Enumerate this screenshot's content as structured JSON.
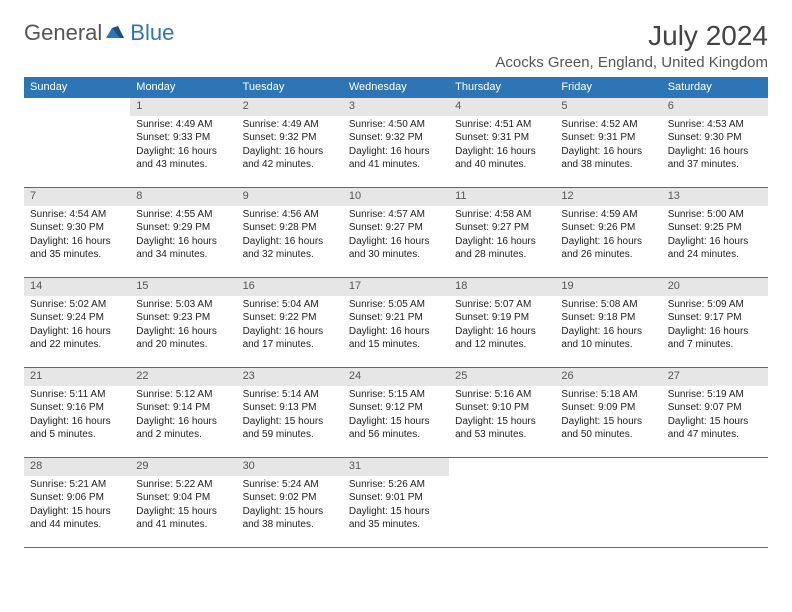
{
  "logo": {
    "general": "General",
    "blue": "Blue"
  },
  "title": "July 2024",
  "location": "Acocks Green, England, United Kingdom",
  "colors": {
    "header_bg": "#2e75b6",
    "header_text": "#ffffff",
    "daynum_bg": "#e6e6e6",
    "border": "#2e75b6",
    "background": "#ffffff",
    "text": "#222222"
  },
  "weekdays": [
    "Sunday",
    "Monday",
    "Tuesday",
    "Wednesday",
    "Thursday",
    "Friday",
    "Saturday"
  ],
  "weeks": [
    {
      "nums": [
        "",
        "1",
        "2",
        "3",
        "4",
        "5",
        "6"
      ],
      "cells": [
        {
          "sunrise": "",
          "sunset": "",
          "daylight": ""
        },
        {
          "sunrise": "Sunrise: 4:49 AM",
          "sunset": "Sunset: 9:33 PM",
          "daylight": "Daylight: 16 hours and 43 minutes."
        },
        {
          "sunrise": "Sunrise: 4:49 AM",
          "sunset": "Sunset: 9:32 PM",
          "daylight": "Daylight: 16 hours and 42 minutes."
        },
        {
          "sunrise": "Sunrise: 4:50 AM",
          "sunset": "Sunset: 9:32 PM",
          "daylight": "Daylight: 16 hours and 41 minutes."
        },
        {
          "sunrise": "Sunrise: 4:51 AM",
          "sunset": "Sunset: 9:31 PM",
          "daylight": "Daylight: 16 hours and 40 minutes."
        },
        {
          "sunrise": "Sunrise: 4:52 AM",
          "sunset": "Sunset: 9:31 PM",
          "daylight": "Daylight: 16 hours and 38 minutes."
        },
        {
          "sunrise": "Sunrise: 4:53 AM",
          "sunset": "Sunset: 9:30 PM",
          "daylight": "Daylight: 16 hours and 37 minutes."
        }
      ]
    },
    {
      "nums": [
        "7",
        "8",
        "9",
        "10",
        "11",
        "12",
        "13"
      ],
      "cells": [
        {
          "sunrise": "Sunrise: 4:54 AM",
          "sunset": "Sunset: 9:30 PM",
          "daylight": "Daylight: 16 hours and 35 minutes."
        },
        {
          "sunrise": "Sunrise: 4:55 AM",
          "sunset": "Sunset: 9:29 PM",
          "daylight": "Daylight: 16 hours and 34 minutes."
        },
        {
          "sunrise": "Sunrise: 4:56 AM",
          "sunset": "Sunset: 9:28 PM",
          "daylight": "Daylight: 16 hours and 32 minutes."
        },
        {
          "sunrise": "Sunrise: 4:57 AM",
          "sunset": "Sunset: 9:27 PM",
          "daylight": "Daylight: 16 hours and 30 minutes."
        },
        {
          "sunrise": "Sunrise: 4:58 AM",
          "sunset": "Sunset: 9:27 PM",
          "daylight": "Daylight: 16 hours and 28 minutes."
        },
        {
          "sunrise": "Sunrise: 4:59 AM",
          "sunset": "Sunset: 9:26 PM",
          "daylight": "Daylight: 16 hours and 26 minutes."
        },
        {
          "sunrise": "Sunrise: 5:00 AM",
          "sunset": "Sunset: 9:25 PM",
          "daylight": "Daylight: 16 hours and 24 minutes."
        }
      ]
    },
    {
      "nums": [
        "14",
        "15",
        "16",
        "17",
        "18",
        "19",
        "20"
      ],
      "cells": [
        {
          "sunrise": "Sunrise: 5:02 AM",
          "sunset": "Sunset: 9:24 PM",
          "daylight": "Daylight: 16 hours and 22 minutes."
        },
        {
          "sunrise": "Sunrise: 5:03 AM",
          "sunset": "Sunset: 9:23 PM",
          "daylight": "Daylight: 16 hours and 20 minutes."
        },
        {
          "sunrise": "Sunrise: 5:04 AM",
          "sunset": "Sunset: 9:22 PM",
          "daylight": "Daylight: 16 hours and 17 minutes."
        },
        {
          "sunrise": "Sunrise: 5:05 AM",
          "sunset": "Sunset: 9:21 PM",
          "daylight": "Daylight: 16 hours and 15 minutes."
        },
        {
          "sunrise": "Sunrise: 5:07 AM",
          "sunset": "Sunset: 9:19 PM",
          "daylight": "Daylight: 16 hours and 12 minutes."
        },
        {
          "sunrise": "Sunrise: 5:08 AM",
          "sunset": "Sunset: 9:18 PM",
          "daylight": "Daylight: 16 hours and 10 minutes."
        },
        {
          "sunrise": "Sunrise: 5:09 AM",
          "sunset": "Sunset: 9:17 PM",
          "daylight": "Daylight: 16 hours and 7 minutes."
        }
      ]
    },
    {
      "nums": [
        "21",
        "22",
        "23",
        "24",
        "25",
        "26",
        "27"
      ],
      "cells": [
        {
          "sunrise": "Sunrise: 5:11 AM",
          "sunset": "Sunset: 9:16 PM",
          "daylight": "Daylight: 16 hours and 5 minutes."
        },
        {
          "sunrise": "Sunrise: 5:12 AM",
          "sunset": "Sunset: 9:14 PM",
          "daylight": "Daylight: 16 hours and 2 minutes."
        },
        {
          "sunrise": "Sunrise: 5:14 AM",
          "sunset": "Sunset: 9:13 PM",
          "daylight": "Daylight: 15 hours and 59 minutes."
        },
        {
          "sunrise": "Sunrise: 5:15 AM",
          "sunset": "Sunset: 9:12 PM",
          "daylight": "Daylight: 15 hours and 56 minutes."
        },
        {
          "sunrise": "Sunrise: 5:16 AM",
          "sunset": "Sunset: 9:10 PM",
          "daylight": "Daylight: 15 hours and 53 minutes."
        },
        {
          "sunrise": "Sunrise: 5:18 AM",
          "sunset": "Sunset: 9:09 PM",
          "daylight": "Daylight: 15 hours and 50 minutes."
        },
        {
          "sunrise": "Sunrise: 5:19 AM",
          "sunset": "Sunset: 9:07 PM",
          "daylight": "Daylight: 15 hours and 47 minutes."
        }
      ]
    },
    {
      "nums": [
        "28",
        "29",
        "30",
        "31",
        "",
        "",
        ""
      ],
      "cells": [
        {
          "sunrise": "Sunrise: 5:21 AM",
          "sunset": "Sunset: 9:06 PM",
          "daylight": "Daylight: 15 hours and 44 minutes."
        },
        {
          "sunrise": "Sunrise: 5:22 AM",
          "sunset": "Sunset: 9:04 PM",
          "daylight": "Daylight: 15 hours and 41 minutes."
        },
        {
          "sunrise": "Sunrise: 5:24 AM",
          "sunset": "Sunset: 9:02 PM",
          "daylight": "Daylight: 15 hours and 38 minutes."
        },
        {
          "sunrise": "Sunrise: 5:26 AM",
          "sunset": "Sunset: 9:01 PM",
          "daylight": "Daylight: 15 hours and 35 minutes."
        },
        {
          "sunrise": "",
          "sunset": "",
          "daylight": ""
        },
        {
          "sunrise": "",
          "sunset": "",
          "daylight": ""
        },
        {
          "sunrise": "",
          "sunset": "",
          "daylight": ""
        }
      ]
    }
  ]
}
